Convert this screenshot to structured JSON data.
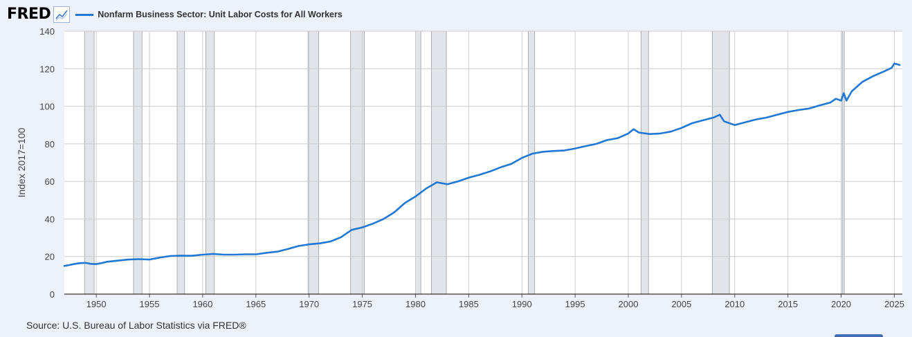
{
  "header": {
    "logo_text": "FRED",
    "logo_icon": "line-chart-icon",
    "legend_label": "Nonfarm Business Sector: Unit Labor Costs for All Workers"
  },
  "source_text": "Source: U.S. Bureau of Labor Statistics via FRED®",
  "colors": {
    "line": "#1f78d4",
    "recession": "#e1e4e9",
    "background": "#ecf1fa",
    "plot_background": "#ffffff",
    "grid": "#cccccc"
  },
  "chart_data": {
    "type": "line",
    "title": "",
    "ylabel": "Index 2017=100",
    "xlabel": "",
    "xlim": [
      1947,
      2025.75
    ],
    "ylim": [
      0,
      140
    ],
    "yticks": [
      0,
      20,
      40,
      60,
      80,
      100,
      120,
      140
    ],
    "xticks": [
      1950,
      1955,
      1960,
      1965,
      1970,
      1975,
      1980,
      1985,
      1990,
      1995,
      2000,
      2005,
      2010,
      2015,
      2020,
      2025
    ],
    "grid": true,
    "legend_position": "top-left",
    "recessions": [
      [
        1948.9,
        1949.8
      ],
      [
        1953.5,
        1954.3
      ],
      [
        1957.6,
        1958.3
      ],
      [
        1960.3,
        1961.1
      ],
      [
        1969.9,
        1970.9
      ],
      [
        1973.9,
        1975.2
      ],
      [
        1980.0,
        1980.5
      ],
      [
        1981.5,
        1982.9
      ],
      [
        1990.6,
        1991.2
      ],
      [
        2001.2,
        2001.9
      ],
      [
        2007.9,
        2009.5
      ],
      [
        2020.1,
        2020.3
      ]
    ],
    "series": [
      {
        "name": "Nonfarm Business Sector: Unit Labor Costs for All Workers",
        "x": [
          1947,
          1947.5,
          1948,
          1948.5,
          1949,
          1949.5,
          1950,
          1950.5,
          1951,
          1952,
          1953,
          1954,
          1955,
          1956,
          1957,
          1958,
          1959,
          1960,
          1961,
          1962,
          1963,
          1964,
          1965,
          1966,
          1967,
          1968,
          1969,
          1970,
          1971,
          1972,
          1973,
          1974,
          1975,
          1976,
          1977,
          1978,
          1979,
          1980,
          1981,
          1982,
          1983,
          1984,
          1985,
          1986,
          1987,
          1988,
          1989,
          1990,
          1991,
          1992,
          1993,
          1994,
          1995,
          1996,
          1997,
          1998,
          1999,
          2000,
          2000.5,
          2001,
          2002,
          2003,
          2004,
          2005,
          2006,
          2007,
          2008,
          2008.6,
          2009,
          2010,
          2011,
          2012,
          2013,
          2014,
          2015,
          2016,
          2017,
          2018,
          2019,
          2019.5,
          2020,
          2020.25,
          2020.5,
          2021,
          2022,
          2023,
          2024,
          2024.75,
          2025,
          2025.5
        ],
        "values": [
          15.0,
          15.5,
          16.1,
          16.5,
          16.6,
          16.1,
          16.0,
          16.5,
          17.2,
          17.8,
          18.4,
          18.6,
          18.4,
          19.5,
          20.3,
          20.5,
          20.4,
          21.0,
          21.4,
          21.0,
          21.0,
          21.2,
          21.2,
          22.0,
          22.6,
          24.0,
          25.6,
          26.5,
          27.0,
          28.0,
          30.3,
          34.2,
          35.5,
          37.5,
          40.0,
          43.5,
          48.5,
          52.0,
          56.2,
          59.5,
          58.5,
          60.0,
          62.0,
          63.5,
          65.3,
          67.5,
          69.3,
          72.5,
          74.8,
          75.8,
          76.2,
          76.5,
          77.5,
          78.8,
          80.0,
          82.0,
          83.0,
          85.5,
          87.8,
          86.0,
          85.2,
          85.5,
          86.5,
          88.5,
          91.0,
          92.5,
          94.0,
          95.5,
          92.0,
          90.0,
          91.5,
          93.0,
          94.0,
          95.5,
          97.0,
          98.0,
          98.8,
          100.5,
          102.0,
          104.0,
          103.0,
          107.0,
          103.0,
          108.0,
          113.0,
          116.0,
          118.5,
          120.5,
          122.8,
          122.0
        ]
      }
    ]
  }
}
